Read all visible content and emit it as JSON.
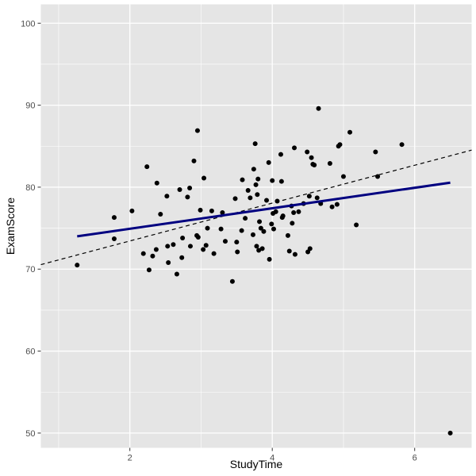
{
  "chart_data": {
    "type": "scatter",
    "xlabel": "StudyTime",
    "ylabel": "ExamScore",
    "xlim": [
      0.75,
      6.8
    ],
    "ylim": [
      48.2,
      102.3
    ],
    "x_ticks": [
      2,
      4,
      6
    ],
    "y_ticks": [
      50,
      60,
      70,
      80,
      90,
      100
    ],
    "x_tick_labels": [
      "2",
      "4",
      "6"
    ],
    "y_tick_labels": [
      "50",
      "60",
      "70",
      "80",
      "90",
      "100"
    ],
    "grid": true,
    "colors": {
      "panel": "#e5e5e5",
      "grid": "#ffffff",
      "points": "#000000",
      "fit_line": "#000080",
      "ref_line": "#000000"
    },
    "points": [
      [
        1.26,
        70.5
      ],
      [
        1.78,
        76.3
      ],
      [
        1.78,
        73.7
      ],
      [
        2.03,
        77.1
      ],
      [
        2.19,
        71.9
      ],
      [
        2.24,
        82.5
      ],
      [
        2.27,
        69.9
      ],
      [
        2.32,
        71.6
      ],
      [
        2.37,
        72.4
      ],
      [
        2.38,
        80.5
      ],
      [
        2.43,
        76.7
      ],
      [
        2.52,
        78.9
      ],
      [
        2.53,
        72.8
      ],
      [
        2.54,
        70.8
      ],
      [
        2.61,
        73.0
      ],
      [
        2.66,
        69.4
      ],
      [
        2.7,
        79.7
      ],
      [
        2.73,
        71.4
      ],
      [
        2.74,
        73.8
      ],
      [
        2.81,
        78.8
      ],
      [
        2.84,
        79.9
      ],
      [
        2.85,
        72.8
      ],
      [
        2.9,
        83.2
      ],
      [
        2.94,
        74.1
      ],
      [
        2.95,
        86.9
      ],
      [
        2.96,
        73.9
      ],
      [
        2.99,
        77.2
      ],
      [
        3.03,
        72.4
      ],
      [
        3.04,
        81.1
      ],
      [
        3.07,
        72.9
      ],
      [
        3.09,
        75.0
      ],
      [
        3.15,
        77.1
      ],
      [
        3.18,
        71.9
      ],
      [
        3.28,
        74.9
      ],
      [
        3.3,
        76.9
      ],
      [
        3.34,
        73.4
      ],
      [
        3.44,
        68.5
      ],
      [
        3.48,
        78.6
      ],
      [
        3.5,
        73.3
      ],
      [
        3.51,
        72.1
      ],
      [
        3.57,
        74.7
      ],
      [
        3.58,
        80.9
      ],
      [
        3.62,
        76.2
      ],
      [
        3.66,
        79.6
      ],
      [
        3.69,
        78.7
      ],
      [
        3.73,
        74.2
      ],
      [
        3.74,
        82.2
      ],
      [
        3.76,
        85.3
      ],
      [
        3.77,
        80.3
      ],
      [
        3.78,
        72.8
      ],
      [
        3.79,
        79.1
      ],
      [
        3.8,
        81.0
      ],
      [
        3.81,
        72.3
      ],
      [
        3.82,
        75.8
      ],
      [
        3.84,
        75.0
      ],
      [
        3.86,
        72.5
      ],
      [
        3.88,
        74.6
      ],
      [
        3.92,
        78.4
      ],
      [
        3.95,
        83.0
      ],
      [
        3.96,
        71.2
      ],
      [
        3.99,
        75.5
      ],
      [
        4.0,
        80.8
      ],
      [
        4.01,
        76.8
      ],
      [
        4.02,
        74.9
      ],
      [
        4.05,
        77.0
      ],
      [
        4.07,
        78.3
      ],
      [
        4.12,
        84.0
      ],
      [
        4.13,
        80.7
      ],
      [
        4.14,
        76.3
      ],
      [
        4.15,
        76.5
      ],
      [
        4.22,
        74.1
      ],
      [
        4.24,
        72.2
      ],
      [
        4.27,
        77.7
      ],
      [
        4.28,
        75.6
      ],
      [
        4.3,
        76.9
      ],
      [
        4.31,
        84.8
      ],
      [
        4.32,
        71.8
      ],
      [
        4.37,
        77.0
      ],
      [
        4.44,
        78.0
      ],
      [
        4.49,
        84.3
      ],
      [
        4.5,
        72.1
      ],
      [
        4.52,
        78.9
      ],
      [
        4.53,
        72.5
      ],
      [
        4.55,
        83.6
      ],
      [
        4.57,
        82.8
      ],
      [
        4.59,
        82.7
      ],
      [
        4.63,
        78.7
      ],
      [
        4.65,
        89.6
      ],
      [
        4.68,
        78.0
      ],
      [
        4.81,
        82.9
      ],
      [
        4.84,
        77.6
      ],
      [
        4.91,
        77.9
      ],
      [
        4.93,
        85.0
      ],
      [
        4.95,
        85.2
      ],
      [
        5.0,
        81.3
      ],
      [
        5.09,
        86.7
      ],
      [
        5.18,
        75.4
      ],
      [
        5.45,
        84.3
      ],
      [
        5.48,
        81.3
      ],
      [
        5.82,
        85.2
      ],
      [
        6.5,
        50.0
      ]
    ],
    "fit_line": {
      "x": [
        1.26,
        6.5
      ],
      "y": [
        74.0,
        80.55
      ]
    },
    "reference_line": {
      "x": [
        0.75,
        6.8
      ],
      "y": [
        70.55,
        84.52
      ]
    }
  }
}
